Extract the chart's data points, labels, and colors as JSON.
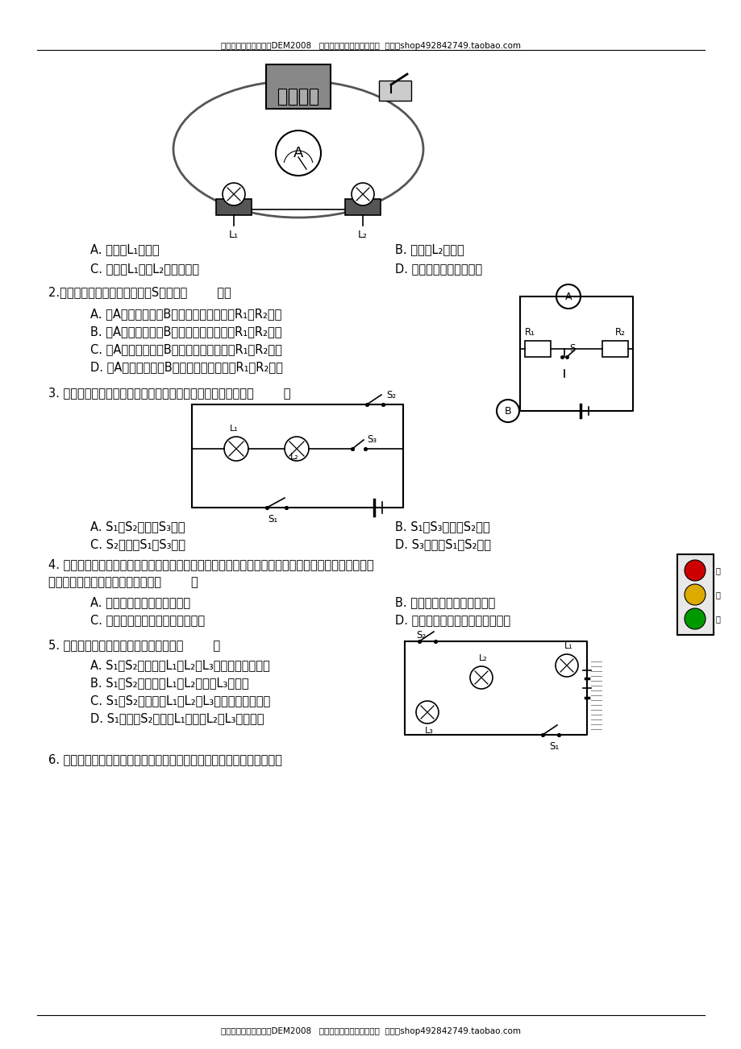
{
  "header_text": "更多资料添加微信号：DEM2008   淡宝搜索店铺：优尖升教育  网址：shop492842749.taobao.com",
  "footer_text": "更多资料添加微信号：DEM2008   淡宝搜索店铺：优尖升教育  网址：shop492842749.taobao.com",
  "bg_color": "#ffffff",
  "q1_options_left": [
    "A. 通过灯L₁的电流",
    "C. 通过灯L₁和灯L₂的电流之和"
  ],
  "q1_options_right": [
    "B. 通过灯L₂的电流",
    "D. 电源供给电路的总电流"
  ],
  "q2_stem": "2.在如图所示的电路中，当开关S闭合后（        ）。",
  "q2_options": [
    "A. 若A表是电流表，B表是电压表，则电阾R₁、R₂并联",
    "B. 若A表是电流表，B表是电压表，则电阾R₁、R₂串联",
    "C. 若A表是电压表，B表是电流表，则电阾R₁、R₂并联",
    "D. 若A表是电压表，B表是电流表，则电阾R₁、R₂串联"
  ],
  "q3_stem": "3. 如图所示，若要使两灯组成并联电路，则开关的开闭情况是（        ）",
  "q3_options_left": [
    "A. S₁、S₂断开，S₃闭合",
    "C. S₂断开，S₁、S₃闭合"
  ],
  "q3_options_right": [
    "B. S₁、S₃断开，S₂闭合",
    "D. S₃断开，S₁、S₂闭合"
  ],
  "q4_stem1": "4. 如图为路口交通指示灯的示意图。指示灯可以通过不同颜色灯光的变化指挥车辆和行人的交通行为。",
  "q4_stem2": "据你对交通指示灯的了解可以推断（        ）",
  "q4_options_left": [
    "A. 红灯、黄灯、绻灯是串联的",
    "C. 红灯与黄灯并联后再与绻灯串联"
  ],
  "q4_options_right": [
    "B. 红灯、黄灯、绻灯是并联的",
    "D. 绻灯与黄灯并联后再与红灯串联"
  ],
  "q5_stem": "5. 如图所示电路，下面判断不正确的是（        ）",
  "q5_options": [
    "A. S₁、S₂均闭合，L₁、L₂、L₃均发光，它们并联",
    "B. S₁、S₂均断开，L₁、L₂发光，L₃不发光",
    "C. S₁、S₂均断开，L₁、L₂、L₃均发光，它们串联",
    "D. S₁闭合、S₂断开，L₁发光，L₂、L₃均不发光"
  ],
  "q6_stem": "6. 小明在实验室中连接了如图所示的电路，请你画出这个电路的电路图。"
}
